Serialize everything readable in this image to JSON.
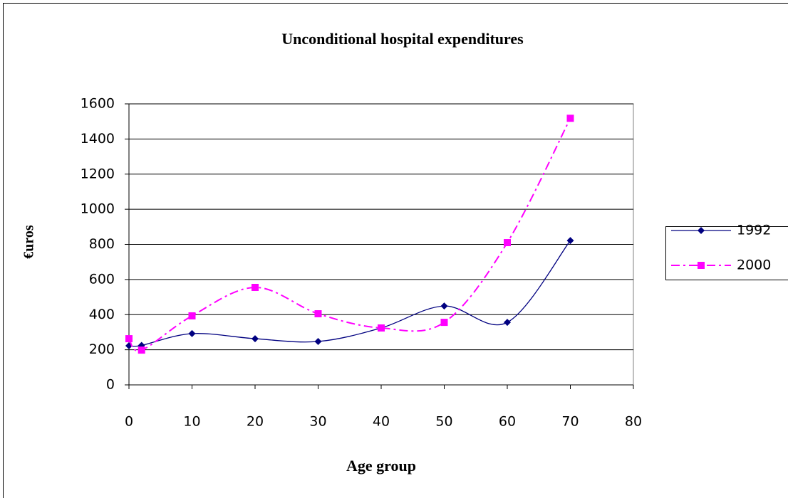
{
  "chart_data": {
    "type": "line",
    "title": "Unconditional hospital expenditures",
    "x_label": "Age group",
    "y_label": "€uros",
    "series": [
      {
        "name": "1992",
        "color": "#000080",
        "marker": "diamond",
        "dash": "solid",
        "x": [
          0,
          2,
          10,
          20,
          30,
          40,
          50,
          60,
          70
        ],
        "values": [
          223,
          225,
          292,
          263,
          247,
          324,
          449,
          356,
          822
        ]
      },
      {
        "name": "2000",
        "color": "#ff00ff",
        "marker": "square",
        "dash": "dashdot",
        "x": [
          0,
          2,
          10,
          20,
          30,
          40,
          50,
          60,
          70
        ],
        "values": [
          263,
          198,
          393,
          555,
          405,
          324,
          356,
          810,
          1518
        ]
      }
    ],
    "xlim": [
      0,
      80
    ],
    "xticks": [
      0,
      10,
      20,
      30,
      40,
      50,
      60,
      70,
      80
    ],
    "ylim": [
      0,
      1600
    ],
    "yticks": [
      0,
      200,
      400,
      600,
      800,
      1000,
      1200,
      1400,
      1600
    ],
    "grid": true,
    "smooth": true,
    "legend": "right"
  }
}
